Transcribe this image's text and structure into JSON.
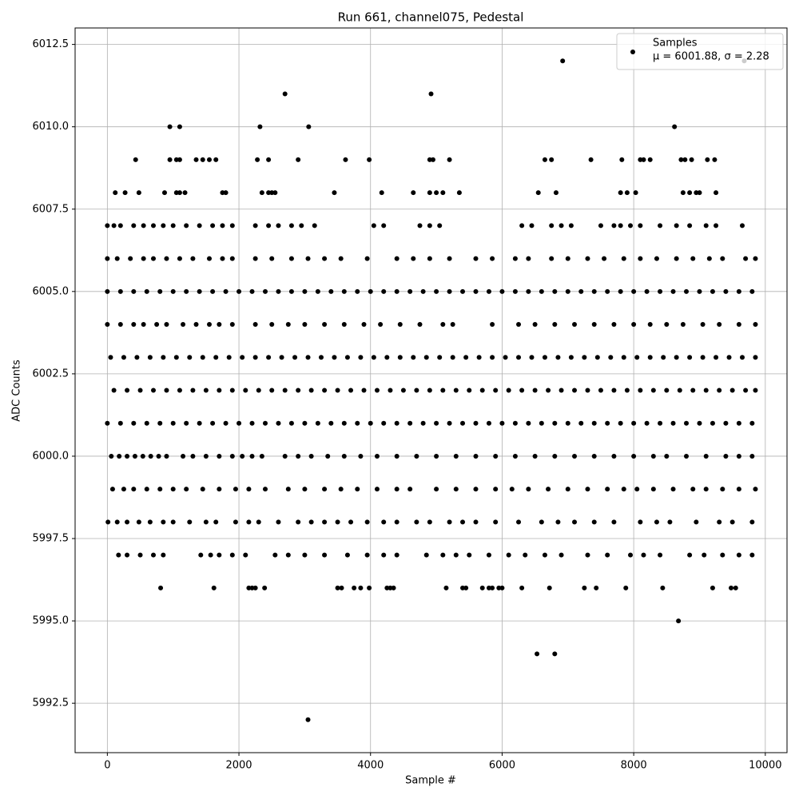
{
  "chart_data": {
    "type": "scatter",
    "title": "Run 661, channel075, Pedestal",
    "x_label": "Sample #",
    "y_label": "ADC Counts",
    "legend_position": "upper right",
    "legend_subtitle": "μ = 6001.88, σ = 2.28",
    "grid": true,
    "xlim": [
      -490,
      10330
    ],
    "ylim": [
      5991,
      6013
    ],
    "xticks": [
      0,
      2000,
      4000,
      6000,
      8000,
      10000
    ],
    "yticks": [
      5992.5,
      {
        "value": 5995,
        "label": "5995.0"
      },
      5997.5,
      {
        "value": 6000,
        "label": "6000.0"
      },
      6002.5,
      {
        "value": 6005,
        "label": "6005.0"
      },
      6007.5,
      {
        "value": 6010,
        "label": "6010.0"
      },
      6012.5
    ],
    "series": [
      {
        "name": "Samples",
        "color": "#000000",
        "x": [
          0,
          200,
          400,
          600,
          800,
          1000,
          1200,
          1400,
          1600,
          1800,
          2000,
          2200,
          2400,
          2600,
          2800,
          3000,
          3200,
          3400,
          3600,
          3800,
          4000,
          4200,
          4400,
          4600,
          4800,
          5000,
          5200,
          5400,
          5600,
          5800,
          6000,
          6200,
          6400,
          6600,
          6800,
          7000,
          7200,
          7400,
          7600,
          7800,
          8000,
          8200,
          8400,
          8600,
          8800,
          9000,
          9200,
          9400,
          9600,
          9800,
          100,
          300,
          500,
          700,
          900,
          1100,
          1300,
          1500,
          1700,
          1900,
          2100,
          2300,
          2500,
          2700,
          2900,
          3100,
          3300,
          3500,
          3700,
          3900,
          4100,
          4300,
          4500,
          4700,
          4900,
          5100,
          5300,
          5500,
          5700,
          5900,
          6100,
          6300,
          6500,
          6700,
          6900,
          7100,
          7300,
          7500,
          7700,
          7900,
          8100,
          8300,
          8500,
          8700,
          8900,
          9100,
          9300,
          9500,
          9700,
          9850,
          50,
          250,
          450,
          650,
          850,
          1050,
          1250,
          1450,
          1650,
          1850,
          2050,
          2250,
          2450,
          2650,
          2850,
          3050,
          3250,
          3450,
          3650,
          3850,
          4050,
          4250,
          4450,
          4650,
          4850,
          5050,
          5250,
          5450,
          5650,
          5850,
          6050,
          6250,
          6450,
          6650,
          6850,
          7050,
          7250,
          7450,
          7650,
          7850,
          8050,
          8250,
          8450,
          8650,
          8850,
          9050,
          9250,
          9450,
          9650,
          9850,
          0,
          200,
          400,
          600,
          800,
          1000,
          1200,
          1400,
          1600,
          1800,
          2000,
          2200,
          2400,
          2600,
          2800,
          3000,
          3200,
          3400,
          3600,
          3800,
          4000,
          4200,
          4400,
          4600,
          4800,
          5000,
          5200,
          5400,
          5600,
          5800,
          6000,
          6200,
          6400,
          6600,
          6800,
          7000,
          7200,
          7400,
          7600,
          7800,
          8000,
          8200,
          8400,
          8600,
          8800,
          9000,
          9200,
          9400,
          9600,
          9800,
          60,
          180,
          300,
          420,
          540,
          660,
          780,
          900,
          1150,
          1300,
          1500,
          1700,
          1900,
          2050,
          2200,
          2350,
          2700,
          2900,
          3100,
          3350,
          3600,
          3850,
          4100,
          4400,
          4700,
          5000,
          5300,
          5600,
          5900,
          6200,
          6500,
          6800,
          7100,
          7400,
          7700,
          8000,
          8300,
          8500,
          8800,
          9100,
          9400,
          9600,
          9800,
          80,
          250,
          400,
          600,
          800,
          1000,
          1200,
          1450,
          1700,
          1950,
          2150,
          2400,
          2750,
          3000,
          3300,
          3550,
          3800,
          4100,
          4400,
          4600,
          5000,
          5300,
          5600,
          5900,
          6150,
          6400,
          6700,
          7000,
          7300,
          7600,
          7850,
          8050,
          8300,
          8600,
          8900,
          9100,
          9350,
          9600,
          9850,
          10,
          150,
          300,
          480,
          650,
          850,
          1000,
          1250,
          1500,
          1650,
          1950,
          2150,
          2300,
          2600,
          2900,
          3100,
          3300,
          3500,
          3700,
          3950,
          4200,
          4400,
          4700,
          4900,
          5200,
          5400,
          5600,
          5900,
          6250,
          6600,
          6850,
          7100,
          7400,
          7700,
          8100,
          8350,
          8550,
          8950,
          9300,
          9500,
          9800,
          170,
          300,
          500,
          700,
          850,
          1420,
          1570,
          1700,
          1900,
          2100,
          2550,
          2750,
          3000,
          3300,
          3650,
          3950,
          4200,
          4400,
          4850,
          5100,
          5300,
          5500,
          5800,
          6100,
          6350,
          6650,
          6900,
          7300,
          7600,
          7950,
          8150,
          8400,
          8850,
          9070,
          9350,
          9600,
          9800,
          0,
          200,
          400,
          550,
          750,
          900,
          1150,
          1350,
          1550,
          1700,
          1900,
          2250,
          2500,
          2750,
          3000,
          3300,
          3600,
          3900,
          4150,
          4450,
          4750,
          5100,
          5250,
          5850,
          6250,
          6500,
          6800,
          7100,
          7400,
          7700,
          8000,
          8250,
          8500,
          8750,
          9050,
          9300,
          9600,
          9850,
          0,
          150,
          350,
          550,
          700,
          900,
          1100,
          1300,
          1550,
          1750,
          1900,
          2250,
          2500,
          2800,
          3050,
          3300,
          3550,
          3950,
          4400,
          4650,
          4900,
          5200,
          5600,
          5850,
          6200,
          6400,
          6750,
          7000,
          7300,
          7550,
          7850,
          8100,
          8350,
          8650,
          8900,
          9150,
          9350,
          9700,
          9850,
          0,
          100,
          200,
          400,
          550,
          700,
          850,
          1000,
          1200,
          1400,
          1600,
          1750,
          1900,
          2250,
          2450,
          2600,
          2800,
          2950,
          3150,
          4050,
          4200,
          4750,
          4900,
          5050,
          6300,
          6450,
          6750,
          6900,
          7050,
          7500,
          7700,
          7800,
          7950,
          8100,
          8400,
          8650,
          8850,
          9100,
          9250,
          9650,
          120,
          270,
          480,
          870,
          1050,
          1100,
          1180,
          1750,
          1800,
          2350,
          2450,
          2500,
          2550,
          3450,
          4170,
          4650,
          4900,
          5000,
          5100,
          5350,
          6550,
          6820,
          7800,
          7900,
          8030,
          8750,
          8850,
          8950,
          9000,
          9250,
          430,
          950,
          1050,
          1100,
          1350,
          1450,
          1550,
          1650,
          2280,
          2450,
          2900,
          3620,
          3980,
          4900,
          4950,
          5200,
          6650,
          6750,
          7350,
          7820,
          8100,
          8150,
          8250,
          8720,
          8780,
          8880,
          9120,
          9230,
          950,
          1100,
          2320,
          3060,
          8620,
          2700,
          4920,
          6920,
          9680,
          810,
          1620,
          2150,
          2200,
          2250,
          2390,
          3500,
          3560,
          3750,
          3850,
          3980,
          4250,
          4300,
          4350,
          5150,
          5400,
          5450,
          5700,
          5800,
          5850,
          5950,
          6000,
          6300,
          6720,
          7250,
          7430,
          7880,
          8440,
          9200,
          9480,
          9550,
          8680,
          6530,
          6800,
          3050
        ],
        "values": [
          6001,
          6001,
          6001,
          6001,
          6001,
          6001,
          6001,
          6001,
          6001,
          6001,
          6001,
          6001,
          6001,
          6001,
          6001,
          6001,
          6001,
          6001,
          6001,
          6001,
          6001,
          6001,
          6001,
          6001,
          6001,
          6001,
          6001,
          6001,
          6001,
          6001,
          6001,
          6001,
          6001,
          6001,
          6001,
          6001,
          6001,
          6001,
          6001,
          6001,
          6001,
          6001,
          6001,
          6001,
          6001,
          6001,
          6001,
          6001,
          6001,
          6001,
          6002,
          6002,
          6002,
          6002,
          6002,
          6002,
          6002,
          6002,
          6002,
          6002,
          6002,
          6002,
          6002,
          6002,
          6002,
          6002,
          6002,
          6002,
          6002,
          6002,
          6002,
          6002,
          6002,
          6002,
          6002,
          6002,
          6002,
          6002,
          6002,
          6002,
          6002,
          6002,
          6002,
          6002,
          6002,
          6002,
          6002,
          6002,
          6002,
          6002,
          6002,
          6002,
          6002,
          6002,
          6002,
          6002,
          6002,
          6002,
          6002,
          6002,
          6003,
          6003,
          6003,
          6003,
          6003,
          6003,
          6003,
          6003,
          6003,
          6003,
          6003,
          6003,
          6003,
          6003,
          6003,
          6003,
          6003,
          6003,
          6003,
          6003,
          6003,
          6003,
          6003,
          6003,
          6003,
          6003,
          6003,
          6003,
          6003,
          6003,
          6003,
          6003,
          6003,
          6003,
          6003,
          6003,
          6003,
          6003,
          6003,
          6003,
          6003,
          6003,
          6003,
          6003,
          6003,
          6003,
          6003,
          6003,
          6003,
          6003,
          6005,
          6005,
          6005,
          6005,
          6005,
          6005,
          6005,
          6005,
          6005,
          6005,
          6005,
          6005,
          6005,
          6005,
          6005,
          6005,
          6005,
          6005,
          6005,
          6005,
          6005,
          6005,
          6005,
          6005,
          6005,
          6005,
          6005,
          6005,
          6005,
          6005,
          6005,
          6005,
          6005,
          6005,
          6005,
          6005,
          6005,
          6005,
          6005,
          6005,
          6005,
          6005,
          6005,
          6005,
          6005,
          6005,
          6005,
          6005,
          6005,
          6005,
          6000,
          6000,
          6000,
          6000,
          6000,
          6000,
          6000,
          6000,
          6000,
          6000,
          6000,
          6000,
          6000,
          6000,
          6000,
          6000,
          6000,
          6000,
          6000,
          6000,
          6000,
          6000,
          6000,
          6000,
          6000,
          6000,
          6000,
          6000,
          6000,
          6000,
          6000,
          6000,
          6000,
          6000,
          6000,
          6000,
          6000,
          6000,
          6000,
          6000,
          6000,
          6000,
          6000,
          5999,
          5999,
          5999,
          5999,
          5999,
          5999,
          5999,
          5999,
          5999,
          5999,
          5999,
          5999,
          5999,
          5999,
          5999,
          5999,
          5999,
          5999,
          5999,
          5999,
          5999,
          5999,
          5999,
          5999,
          5999,
          5999,
          5999,
          5999,
          5999,
          5999,
          5999,
          5999,
          5999,
          5999,
          5999,
          5999,
          5999,
          5999,
          5999,
          5998,
          5998,
          5998,
          5998,
          5998,
          5998,
          5998,
          5998,
          5998,
          5998,
          5998,
          5998,
          5998,
          5998,
          5998,
          5998,
          5998,
          5998,
          5998,
          5998,
          5998,
          5998,
          5998,
          5998,
          5998,
          5998,
          5998,
          5998,
          5998,
          5998,
          5998,
          5998,
          5998,
          5998,
          5998,
          5998,
          5998,
          5998,
          5998,
          5998,
          5998,
          5997,
          5997,
          5997,
          5997,
          5997,
          5997,
          5997,
          5997,
          5997,
          5997,
          5997,
          5997,
          5997,
          5997,
          5997,
          5997,
          5997,
          5997,
          5997,
          5997,
          5997,
          5997,
          5997,
          5997,
          5997,
          5997,
          5997,
          5997,
          5997,
          5997,
          5997,
          5997,
          5997,
          5997,
          5997,
          5997,
          5997,
          6004,
          6004,
          6004,
          6004,
          6004,
          6004,
          6004,
          6004,
          6004,
          6004,
          6004,
          6004,
          6004,
          6004,
          6004,
          6004,
          6004,
          6004,
          6004,
          6004,
          6004,
          6004,
          6004,
          6004,
          6004,
          6004,
          6004,
          6004,
          6004,
          6004,
          6004,
          6004,
          6004,
          6004,
          6004,
          6004,
          6004,
          6004,
          6006,
          6006,
          6006,
          6006,
          6006,
          6006,
          6006,
          6006,
          6006,
          6006,
          6006,
          6006,
          6006,
          6006,
          6006,
          6006,
          6006,
          6006,
          6006,
          6006,
          6006,
          6006,
          6006,
          6006,
          6006,
          6006,
          6006,
          6006,
          6006,
          6006,
          6006,
          6006,
          6006,
          6006,
          6006,
          6006,
          6006,
          6006,
          6006,
          6007,
          6007,
          6007,
          6007,
          6007,
          6007,
          6007,
          6007,
          6007,
          6007,
          6007,
          6007,
          6007,
          6007,
          6007,
          6007,
          6007,
          6007,
          6007,
          6007,
          6007,
          6007,
          6007,
          6007,
          6007,
          6007,
          6007,
          6007,
          6007,
          6007,
          6007,
          6007,
          6007,
          6007,
          6007,
          6007,
          6007,
          6007,
          6007,
          6007,
          6008,
          6008,
          6008,
          6008,
          6008,
          6008,
          6008,
          6008,
          6008,
          6008,
          6008,
          6008,
          6008,
          6008,
          6008,
          6008,
          6008,
          6008,
          6008,
          6008,
          6008,
          6008,
          6008,
          6008,
          6008,
          6008,
          6008,
          6008,
          6008,
          6008,
          6009,
          6009,
          6009,
          6009,
          6009,
          6009,
          6009,
          6009,
          6009,
          6009,
          6009,
          6009,
          6009,
          6009,
          6009,
          6009,
          6009,
          6009,
          6009,
          6009,
          6009,
          6009,
          6009,
          6009,
          6009,
          6009,
          6009,
          6009,
          6010,
          6010,
          6010,
          6010,
          6010,
          6011,
          6011,
          6012,
          6012,
          5996,
          5996,
          5996,
          5996,
          5996,
          5996,
          5996,
          5996,
          5996,
          5996,
          5996,
          5996,
          5996,
          5996,
          5996,
          5996,
          5996,
          5996,
          5996,
          5996,
          5996,
          5996,
          5996,
          5996,
          5996,
          5996,
          5996,
          5996,
          5996,
          5996,
          5996,
          5995,
          5994,
          5994,
          5992
        ]
      }
    ]
  }
}
